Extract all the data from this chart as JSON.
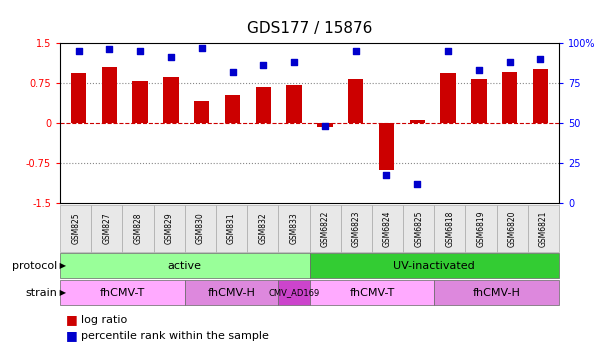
{
  "title": "GDS177 / 15876",
  "samples": [
    "GSM825",
    "GSM827",
    "GSM828",
    "GSM829",
    "GSM830",
    "GSM831",
    "GSM832",
    "GSM833",
    "GSM6822",
    "GSM6823",
    "GSM6824",
    "GSM6825",
    "GSM6818",
    "GSM6819",
    "GSM6820",
    "GSM6821"
  ],
  "log_ratio": [
    0.93,
    1.05,
    0.78,
    0.87,
    0.42,
    0.52,
    0.67,
    0.72,
    -0.08,
    0.82,
    -0.88,
    0.05,
    0.93,
    0.82,
    0.95,
    1.02
  ],
  "pct_rank": [
    95,
    96,
    95,
    91,
    97,
    82,
    86,
    88,
    48,
    95,
    18,
    12,
    95,
    83,
    88,
    90
  ],
  "bar_color": "#cc0000",
  "dot_color": "#0000cc",
  "ylim": [
    -1.5,
    1.5
  ],
  "y2lim": [
    0,
    100
  ],
  "yticks_left": [
    -1.5,
    -0.75,
    0,
    0.75,
    1.5
  ],
  "yticks_right": [
    0,
    25,
    50,
    75,
    100
  ],
  "protocol_labels": [
    {
      "label": "active",
      "start": 0,
      "end": 8,
      "color": "#99ff99"
    },
    {
      "label": "UV-inactivated",
      "start": 8,
      "end": 16,
      "color": "#33cc33"
    }
  ],
  "strain_labels": [
    {
      "label": "fhCMV-T",
      "start": 0,
      "end": 4,
      "color": "#ffaaff"
    },
    {
      "label": "fhCMV-H",
      "start": 4,
      "end": 7,
      "color": "#dd88dd"
    },
    {
      "label": "CMV_AD169",
      "start": 7,
      "end": 8,
      "color": "#cc44cc"
    },
    {
      "label": "fhCMV-T",
      "start": 8,
      "end": 12,
      "color": "#ffaaff"
    },
    {
      "label": "fhCMV-H",
      "start": 12,
      "end": 16,
      "color": "#dd88dd"
    }
  ],
  "legend_bar_label": "log ratio",
  "legend_dot_label": "percentile rank within the sample",
  "hline_color": "#cc0000",
  "hline_style": "dotted",
  "grid_color": "#888888",
  "bg_color": "#ffffff",
  "title_fontsize": 11,
  "tick_fontsize": 7,
  "label_fontsize": 8
}
